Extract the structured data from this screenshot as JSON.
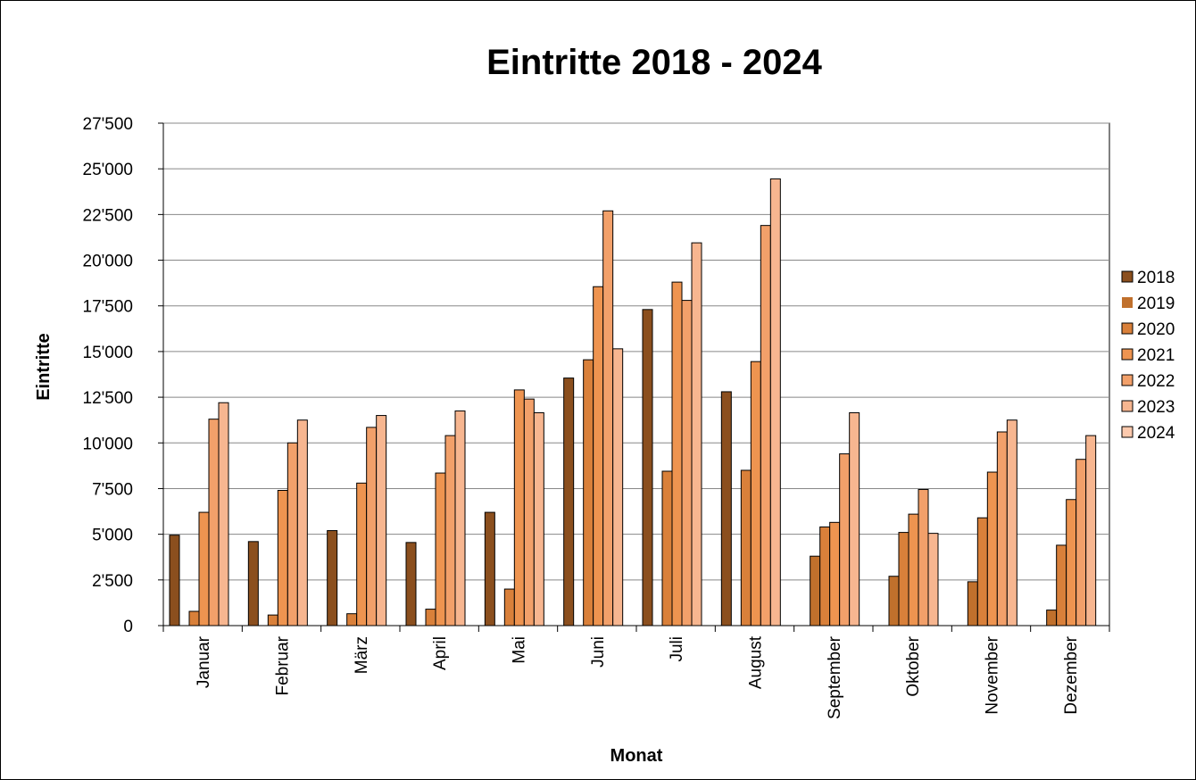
{
  "chart_data": {
    "type": "bar",
    "title": "Eintritte 2018 - 2024",
    "xlabel": "Monat",
    "ylabel": "Eintritte",
    "ylim": [
      0,
      27500
    ],
    "yticks": [
      "0",
      "2'500",
      "5'000",
      "7'500",
      "10'000",
      "12'500",
      "15'000",
      "17'500",
      "20'000",
      "22'500",
      "25'000",
      "27'500"
    ],
    "grid": true,
    "legend_position": "right",
    "categories": [
      "Januar",
      "Februar",
      "März",
      "April",
      "Mai",
      "Juni",
      "Juli",
      "August",
      "September",
      "Oktober",
      "November",
      "Dezember"
    ],
    "series": [
      {
        "name": "2018",
        "color": "#8b4f1e",
        "values": [
          4950,
          4600,
          5200,
          4550,
          6200,
          13550,
          17300,
          12800,
          null,
          null,
          null,
          null
        ]
      },
      {
        "name": "2019",
        "color": "#c0702c",
        "values": [
          null,
          null,
          null,
          null,
          null,
          null,
          null,
          null,
          3800,
          2700,
          2400,
          850
        ]
      },
      {
        "name": "2020",
        "color": "#d9803a",
        "values": [
          780,
          580,
          650,
          900,
          2000,
          14550,
          8450,
          8500,
          5400,
          5100,
          5900,
          4400
        ]
      },
      {
        "name": "2021",
        "color": "#ee9450",
        "values": [
          6200,
          7400,
          7800,
          8350,
          12900,
          18550,
          18800,
          14450,
          5650,
          6100,
          8400,
          6900
        ]
      },
      {
        "name": "2022",
        "color": "#f2a06a",
        "values": [
          11300,
          10000,
          10850,
          10400,
          12400,
          22700,
          17800,
          21900,
          9400,
          7450,
          10600,
          9100
        ]
      },
      {
        "name": "2023",
        "color": "#f7b690",
        "values": [
          12200,
          11250,
          11500,
          11750,
          11650,
          15150,
          20950,
          24450,
          11650,
          5050,
          11250,
          10400
        ]
      },
      {
        "name": "2024",
        "color": "#fcc9ad",
        "values": [
          null,
          null,
          null,
          null,
          null,
          null,
          null,
          null,
          null,
          null,
          null,
          null
        ]
      }
    ]
  }
}
